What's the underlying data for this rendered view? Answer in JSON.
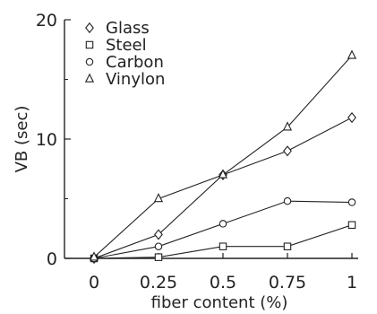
{
  "chart_data": {
    "type": "line",
    "title": "",
    "xlabel": "fiber content  (%)",
    "ylabel": "VB    (sec)",
    "x": [
      0,
      0.25,
      0.5,
      0.75,
      1
    ],
    "x_tick_labels": [
      "0",
      "0.25",
      "0.5",
      "0.75",
      "1"
    ],
    "y_ticks": [
      0,
      10,
      20
    ],
    "xlim": [
      -0.1,
      1.05
    ],
    "ylim": [
      0,
      20
    ],
    "grid": false,
    "legend_position": "top-left",
    "series": [
      {
        "name": "Glass",
        "marker": "diamond",
        "values": [
          0,
          2.0,
          7.0,
          9.0,
          11.8
        ]
      },
      {
        "name": "Steel",
        "marker": "square",
        "values": [
          0,
          0.1,
          1.0,
          1.0,
          2.8
        ]
      },
      {
        "name": "Carbon",
        "marker": "circle",
        "values": [
          0,
          1.0,
          2.9,
          4.8,
          4.7
        ]
      },
      {
        "name": "Vinylon",
        "marker": "triangle",
        "values": [
          0.1,
          5.0,
          7.0,
          11.0,
          17.0
        ]
      }
    ]
  },
  "colors": {
    "ink": "#222222",
    "background": "#ffffff"
  }
}
